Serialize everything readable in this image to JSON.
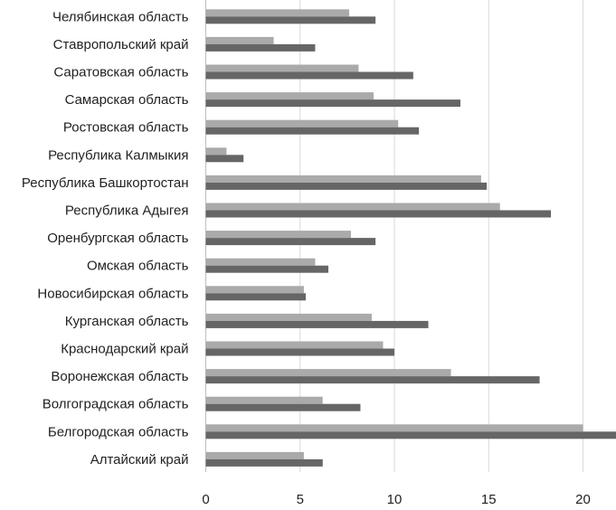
{
  "chart_data": {
    "type": "bar",
    "orientation": "horizontal",
    "title": "",
    "xlabel": "",
    "ylabel": "",
    "categories": [
      "Алтайский край",
      "Белгородская область",
      "Волгоградская область",
      "Воронежская область",
      "Краснодарский край",
      "Курганская область",
      "Новосибирская область",
      "Омская область",
      "Оренбургская область",
      "Республика Адыгея",
      "Республика Башкортостан",
      "Республика Калмыкия",
      "Ростовская область",
      "Самарская область",
      "Саратовская область",
      "Ставропольский край",
      "Челябинская область"
    ],
    "series": [
      {
        "values": [
          5.2,
          20.0,
          6.2,
          13.0,
          9.4,
          8.8,
          5.2,
          5.8,
          7.7,
          15.6,
          14.6,
          1.1,
          10.2,
          8.9,
          8.1,
          3.6,
          7.6
        ],
        "color": "#aaaaaa"
      },
      {
        "values": [
          6.2,
          21.8,
          8.2,
          17.7,
          10.0,
          11.8,
          5.3,
          6.5,
          9.0,
          18.3,
          14.9,
          2.0,
          11.3,
          13.5,
          11.0,
          5.8,
          9.0
        ],
        "color": "#666666"
      }
    ],
    "xlim": [
      0,
      21.8
    ],
    "xticks": [
      "0",
      "5",
      "10",
      "15",
      "20"
    ],
    "xtick_values": [
      0,
      5,
      10,
      15,
      20
    ],
    "grid": "vertical",
    "legend": "none"
  }
}
